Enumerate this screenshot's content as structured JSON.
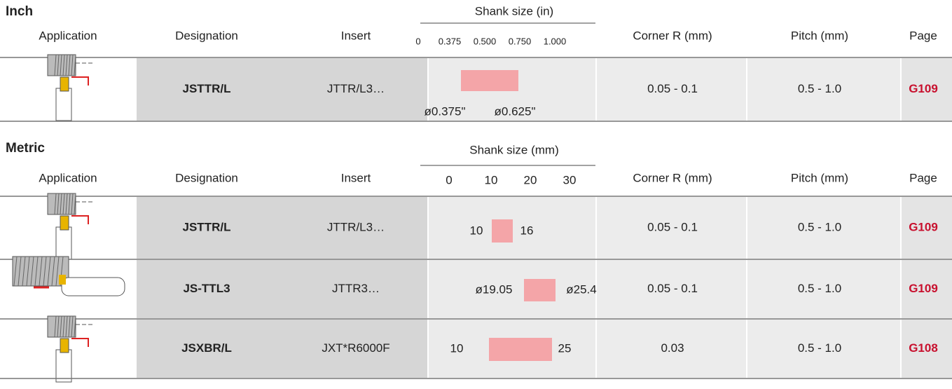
{
  "sections": [
    {
      "title": "Inch",
      "headers": {
        "application": "Application",
        "designation": "Designation",
        "insert": "Insert",
        "shank_title": "Shank size (in)",
        "shank_ticks": [
          "0",
          "0.375",
          "0.500",
          "0.750",
          "1.000"
        ],
        "corner": "Corner R (mm)",
        "pitch": "Pitch (mm)",
        "page": "Page"
      },
      "rows": [
        {
          "designation": "JSTTR/L",
          "insert": "JTTR/L3…",
          "shank_min": "ø0.375\"",
          "shank_max": "ø0.625\"",
          "corner": "0.05 - 0.1",
          "pitch": "0.5 - 1.0",
          "page": "G109"
        }
      ]
    },
    {
      "title": "Metric",
      "headers": {
        "application": "Application",
        "designation": "Designation",
        "insert": "Insert",
        "shank_title": "Shank size (mm)",
        "shank_ticks": [
          "0",
          "10",
          "20",
          "30"
        ],
        "corner": "Corner R (mm)",
        "pitch": "Pitch (mm)",
        "page": "Page"
      },
      "rows": [
        {
          "designation": "JSTTR/L",
          "insert": "JTTR/L3…",
          "shank_min": "10",
          "shank_max": "16",
          "corner": "0.05 - 0.1",
          "pitch": "0.5 - 1.0",
          "page": "G109"
        },
        {
          "designation": "JS-TTL3",
          "insert": "JTTR3…",
          "shank_min": "ø19.05",
          "shank_max": "ø25.4",
          "corner": "0.05 - 0.1",
          "pitch": "0.5 - 1.0",
          "page": "G109"
        },
        {
          "designation": "JSXBR/L",
          "insert": "JXT*R6000F",
          "shank_min": "10",
          "shank_max": "25",
          "corner": "0.03",
          "pitch": "0.5 - 1.0",
          "page": "G108"
        }
      ]
    }
  ]
}
